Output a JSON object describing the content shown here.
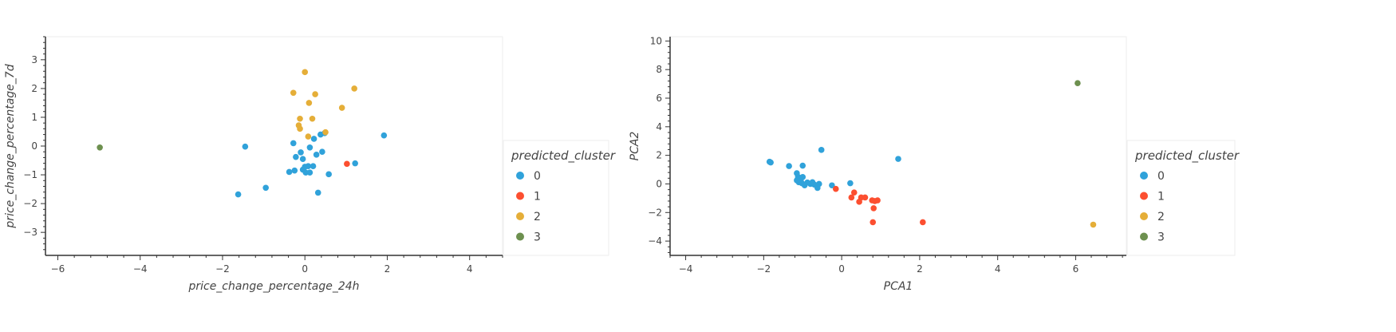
{
  "chart_data": [
    {
      "type": "scatter",
      "title": "",
      "xlabel": "price_change_percentage_24h",
      "ylabel": "price_change_percentage_7d",
      "xlim": [
        -6.3,
        4.8
      ],
      "ylim": [
        -3.8,
        3.8
      ],
      "xticks": [
        -6,
        -4,
        -2,
        0,
        2,
        4
      ],
      "yticks": [
        -3,
        -2,
        -1,
        0,
        1,
        2,
        3
      ],
      "grid": false,
      "legend": {
        "title": "predicted_cluster",
        "position": "right",
        "labels": [
          "0",
          "1",
          "2",
          "3"
        ]
      },
      "colors": [
        "#30a2da",
        "#fc4f30",
        "#e5ae38",
        "#6d904f"
      ],
      "series": [
        {
          "name": "0",
          "points": [
            [
              -1.45,
              -0.02
            ],
            [
              -1.62,
              -1.68
            ],
            [
              -0.95,
              -1.45
            ],
            [
              -0.38,
              -0.9
            ],
            [
              -0.25,
              -0.85
            ],
            [
              -0.28,
              0.1
            ],
            [
              -0.22,
              -0.38
            ],
            [
              -0.1,
              -0.22
            ],
            [
              -0.05,
              -0.45
            ],
            [
              -0.05,
              -0.82
            ],
            [
              0.0,
              -0.72
            ],
            [
              0.02,
              -0.92
            ],
            [
              0.08,
              -0.7
            ],
            [
              0.12,
              -0.92
            ],
            [
              0.12,
              -0.05
            ],
            [
              0.2,
              -0.7
            ],
            [
              0.22,
              0.25
            ],
            [
              0.28,
              -0.3
            ],
            [
              0.32,
              -1.62
            ],
            [
              0.38,
              0.4
            ],
            [
              0.42,
              -0.2
            ],
            [
              0.58,
              -0.98
            ],
            [
              0.48,
              0.45
            ],
            [
              1.22,
              -0.6
            ],
            [
              1.92,
              0.37
            ]
          ]
        },
        {
          "name": "1",
          "points": [
            [
              1.02,
              -0.62
            ]
          ]
        },
        {
          "name": "2",
          "points": [
            [
              0.0,
              2.57
            ],
            [
              -0.28,
              1.85
            ],
            [
              0.25,
              1.8
            ],
            [
              1.2,
              2.0
            ],
            [
              0.1,
              1.5
            ],
            [
              0.9,
              1.33
            ],
            [
              -0.12,
              0.95
            ],
            [
              0.18,
              0.95
            ],
            [
              -0.15,
              0.72
            ],
            [
              -0.12,
              0.6
            ],
            [
              0.08,
              0.33
            ],
            [
              0.5,
              0.48
            ]
          ]
        },
        {
          "name": "3",
          "points": [
            [
              -4.98,
              -0.05
            ]
          ]
        }
      ]
    },
    {
      "type": "scatter",
      "title": "",
      "xlabel": "PCA1",
      "ylabel": "PCA2",
      "xlim": [
        -4.4,
        7.3
      ],
      "ylim": [
        -5.0,
        10.3
      ],
      "xticks": [
        -4,
        -2,
        0,
        2,
        4,
        6
      ],
      "yticks": [
        -4,
        -2,
        0,
        2,
        4,
        6,
        8,
        10
      ],
      "grid": false,
      "legend": {
        "title": "predicted_cluster",
        "position": "right",
        "labels": [
          "0",
          "1",
          "2",
          "3"
        ]
      },
      "colors": [
        "#30a2da",
        "#fc4f30",
        "#e5ae38",
        "#6d904f"
      ],
      "series": [
        {
          "name": "0",
          "points": [
            [
              -1.85,
              1.55
            ],
            [
              -1.82,
              1.5
            ],
            [
              -1.35,
              1.25
            ],
            [
              -1.0,
              1.28
            ],
            [
              -0.52,
              2.38
            ],
            [
              -1.15,
              0.75
            ],
            [
              -1.12,
              0.5
            ],
            [
              -1.05,
              0.3
            ],
            [
              -1.0,
              0.48
            ],
            [
              -1.1,
              0.12
            ],
            [
              -1.02,
              0.05
            ],
            [
              -0.95,
              -0.1
            ],
            [
              -0.88,
              0.1
            ],
            [
              -0.8,
              0.0
            ],
            [
              -0.75,
              0.12
            ],
            [
              -0.7,
              -0.05
            ],
            [
              -0.62,
              -0.28
            ],
            [
              -0.58,
              0.0
            ],
            [
              -1.15,
              0.25
            ],
            [
              -0.25,
              -0.1
            ],
            [
              0.22,
              0.05
            ],
            [
              1.45,
              1.75
            ]
          ]
        },
        {
          "name": "1",
          "points": [
            [
              -0.15,
              -0.35
            ],
            [
              0.25,
              -0.95
            ],
            [
              0.32,
              -0.6
            ],
            [
              0.45,
              -1.25
            ],
            [
              0.5,
              -0.95
            ],
            [
              0.6,
              -0.95
            ],
            [
              0.78,
              -1.15
            ],
            [
              0.85,
              -1.2
            ],
            [
              0.92,
              -1.15
            ],
            [
              0.82,
              -1.7
            ],
            [
              0.8,
              -2.68
            ],
            [
              2.08,
              -2.68
            ]
          ]
        },
        {
          "name": "2",
          "points": [
            [
              6.45,
              -2.85
            ]
          ]
        },
        {
          "name": "3",
          "points": [
            [
              6.05,
              7.05
            ]
          ]
        }
      ]
    }
  ]
}
